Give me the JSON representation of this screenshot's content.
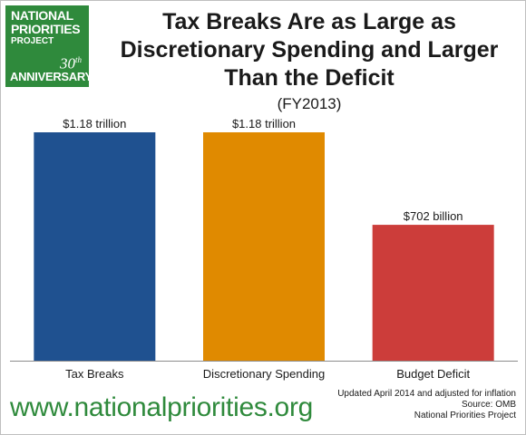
{
  "logo": {
    "line1": "NATIONAL",
    "line2": "PRIORITIES",
    "line3": "PROJECT",
    "anniversary_number": "30",
    "anniversary_suffix": "th",
    "anniversary_label": "ANNIVERSARY"
  },
  "footer": {
    "url": "www.nationalpriorities.org",
    "note_updated": "Updated April 2014 and adjusted for inflation",
    "note_source": "Source: OMB",
    "note_org": "National Priorities Project"
  },
  "colors": {
    "brand_green": "#2f8a3c",
    "tax_breaks": "#1f5190",
    "discretionary": "#e08a00",
    "deficit": "#cc3d3a"
  },
  "chart_data": {
    "type": "bar",
    "title": "Tax Breaks Are as Large as Discretionary Spending and Larger Than the Deficit",
    "subtitle": "(FY2013)",
    "xlabel": "",
    "ylabel": "",
    "unit": "billion dollars",
    "categories": [
      "Tax Breaks",
      "Discretionary Spending",
      "Budget Deficit"
    ],
    "values": [
      1180,
      1180,
      702
    ],
    "data_labels": [
      "$1.18 trillion",
      "$1.18 trillion",
      "$702 billion"
    ],
    "bar_colors": [
      "#1f5190",
      "#e08a00",
      "#cc3d3a"
    ],
    "ylim": [
      0,
      1180
    ],
    "grid": false,
    "legend": "none"
  }
}
